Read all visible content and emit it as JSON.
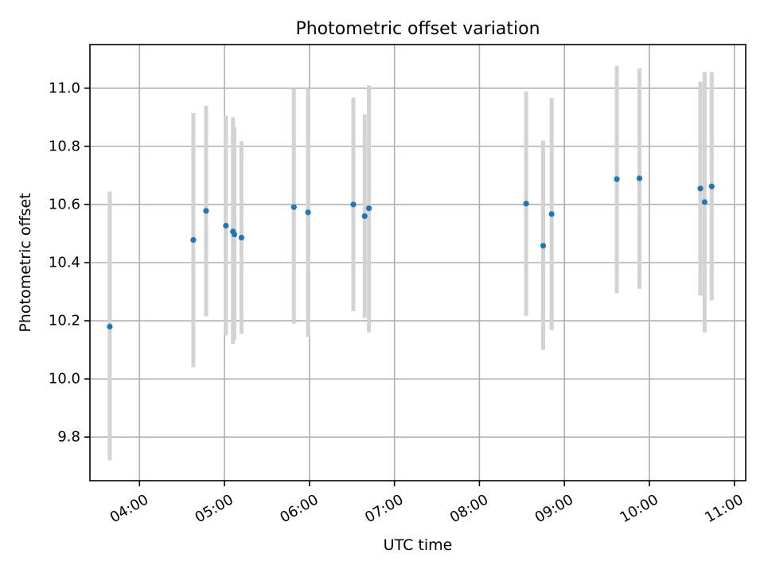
{
  "chart_data": {
    "type": "scatter",
    "title": "Photometric offset variation",
    "xlabel": "UTC time",
    "ylabel": "Photometric offset",
    "x_ticks": [
      "04:00",
      "05:00",
      "06:00",
      "07:00",
      "08:00",
      "09:00",
      "10:00",
      "11:00"
    ],
    "y_ticks": [
      "9.8",
      "10.0",
      "10.2",
      "10.4",
      "10.6",
      "10.8",
      "11.0"
    ],
    "xlim": [
      "03:25",
      "11:08"
    ],
    "ylim": [
      9.65,
      11.15
    ],
    "grid": true,
    "legend": "none",
    "point_color": "#1f77b4",
    "errorbar_color": "#d3d3d3",
    "points": [
      {
        "x": "03:39",
        "y": 10.18,
        "ylow": 9.72,
        "yhigh": 10.645
      },
      {
        "x": "04:38",
        "y": 10.478,
        "ylow": 10.04,
        "yhigh": 10.915
      },
      {
        "x": "04:47",
        "y": 10.578,
        "ylow": 10.215,
        "yhigh": 10.94
      },
      {
        "x": "05:01",
        "y": 10.527,
        "ylow": 10.15,
        "yhigh": 10.905
      },
      {
        "x": "05:06",
        "y": 10.507,
        "ylow": 10.12,
        "yhigh": 10.9
      },
      {
        "x": "05:07",
        "y": 10.497,
        "ylow": 10.135,
        "yhigh": 10.865
      },
      {
        "x": "05:12",
        "y": 10.486,
        "ylow": 10.155,
        "yhigh": 10.818
      },
      {
        "x": "05:49",
        "y": 10.591,
        "ylow": 10.19,
        "yhigh": 10.997
      },
      {
        "x": "05:59",
        "y": 10.573,
        "ylow": 10.145,
        "yhigh": 11.0
      },
      {
        "x": "06:31",
        "y": 10.6,
        "ylow": 10.233,
        "yhigh": 10.968
      },
      {
        "x": "06:39",
        "y": 10.56,
        "ylow": 10.21,
        "yhigh": 10.91
      },
      {
        "x": "06:42",
        "y": 10.587,
        "ylow": 10.16,
        "yhigh": 11.01
      },
      {
        "x": "08:33",
        "y": 10.603,
        "ylow": 10.217,
        "yhigh": 10.988
      },
      {
        "x": "08:45",
        "y": 10.458,
        "ylow": 10.1,
        "yhigh": 10.82
      },
      {
        "x": "08:51",
        "y": 10.567,
        "ylow": 10.168,
        "yhigh": 10.966
      },
      {
        "x": "09:37",
        "y": 10.687,
        "ylow": 10.295,
        "yhigh": 11.077
      },
      {
        "x": "09:53",
        "y": 10.69,
        "ylow": 10.31,
        "yhigh": 11.068
      },
      {
        "x": "10:36",
        "y": 10.655,
        "ylow": 10.287,
        "yhigh": 11.022
      },
      {
        "x": "10:39",
        "y": 10.608,
        "ylow": 10.16,
        "yhigh": 11.056
      },
      {
        "x": "10:44",
        "y": 10.662,
        "ylow": 10.27,
        "yhigh": 11.055
      }
    ]
  }
}
